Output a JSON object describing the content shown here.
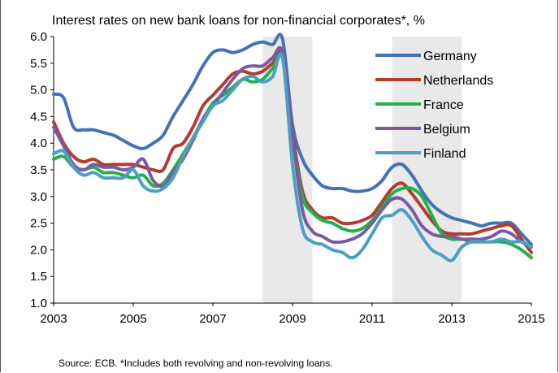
{
  "chart_data": {
    "type": "line",
    "title": "Interest rates on new bank loans for non-financial corporates*, %",
    "source_label": "Source: ECB.",
    "note": "*Includes both revolving and non-revolving loans.",
    "xlim": [
      2003,
      2015
    ],
    "ylim": [
      1.0,
      6.0
    ],
    "x_ticks": [
      2003,
      2005,
      2007,
      2009,
      2011,
      2013,
      2015
    ],
    "y_ticks": [
      "1.0",
      "1.5",
      "2.0",
      "2.5",
      "3.0",
      "3.5",
      "4.0",
      "4.5",
      "5.0",
      "5.5",
      "6.0"
    ],
    "shaded_periods": [
      [
        2008.25,
        2009.5
      ],
      [
        2011.5,
        2013.25
      ]
    ],
    "legend_position": "top-right",
    "x": [
      2003.0,
      2003.25,
      2003.5,
      2003.75,
      2004.0,
      2004.25,
      2004.5,
      2004.75,
      2005.0,
      2005.25,
      2005.5,
      2005.75,
      2006.0,
      2006.25,
      2006.5,
      2006.75,
      2007.0,
      2007.25,
      2007.5,
      2007.75,
      2008.0,
      2008.25,
      2008.5,
      2008.75,
      2009.0,
      2009.25,
      2009.5,
      2009.75,
      2010.0,
      2010.25,
      2010.5,
      2010.75,
      2011.0,
      2011.25,
      2011.5,
      2011.75,
      2012.0,
      2012.25,
      2012.5,
      2012.75,
      2013.0,
      2013.25,
      2013.5,
      2013.75,
      2014.0,
      2014.25,
      2014.5,
      2014.75,
      2015.0
    ],
    "series": [
      {
        "name": "Germany",
        "color": "#4472b8",
        "values": [
          4.92,
          4.85,
          4.3,
          4.25,
          4.25,
          4.2,
          4.15,
          4.05,
          3.95,
          3.9,
          4.0,
          4.15,
          4.5,
          4.8,
          5.1,
          5.45,
          5.7,
          5.75,
          5.7,
          5.75,
          5.85,
          5.9,
          5.85,
          5.95,
          4.35,
          3.7,
          3.4,
          3.2,
          3.15,
          3.15,
          3.1,
          3.1,
          3.15,
          3.3,
          3.55,
          3.6,
          3.4,
          3.1,
          2.85,
          2.7,
          2.6,
          2.55,
          2.5,
          2.45,
          2.5,
          2.5,
          2.5,
          2.3,
          2.1
        ]
      },
      {
        "name": "Netherlands",
        "color": "#b53a30",
        "values": [
          4.4,
          4.0,
          3.75,
          3.65,
          3.7,
          3.6,
          3.6,
          3.6,
          3.6,
          3.55,
          3.5,
          3.5,
          3.9,
          4.0,
          4.3,
          4.7,
          4.9,
          5.1,
          5.3,
          5.35,
          5.3,
          5.35,
          5.5,
          5.65,
          4.2,
          3.1,
          2.75,
          2.6,
          2.6,
          2.5,
          2.5,
          2.55,
          2.65,
          2.9,
          3.15,
          3.25,
          3.05,
          2.8,
          2.55,
          2.35,
          2.3,
          2.3,
          2.3,
          2.35,
          2.4,
          2.45,
          2.45,
          2.2,
          1.95
        ]
      },
      {
        "name": "France",
        "color": "#22b24c",
        "values": [
          3.7,
          3.75,
          3.55,
          3.5,
          3.55,
          3.45,
          3.45,
          3.4,
          3.35,
          3.4,
          3.2,
          3.25,
          3.5,
          3.8,
          4.1,
          4.45,
          4.75,
          4.9,
          5.05,
          5.2,
          5.15,
          5.2,
          5.4,
          5.6,
          4.1,
          3.0,
          2.7,
          2.55,
          2.5,
          2.4,
          2.35,
          2.4,
          2.55,
          2.8,
          3.05,
          3.15,
          3.15,
          3.0,
          2.65,
          2.3,
          2.2,
          2.2,
          2.15,
          2.15,
          2.15,
          2.15,
          2.1,
          2.0,
          1.85
        ]
      },
      {
        "name": "Belgium",
        "color": "#7a5aa3",
        "values": [
          4.3,
          3.95,
          3.6,
          3.5,
          3.6,
          3.55,
          3.55,
          3.5,
          3.55,
          3.7,
          3.3,
          3.2,
          3.45,
          3.7,
          4.05,
          4.45,
          4.7,
          4.95,
          5.2,
          5.4,
          5.45,
          5.45,
          5.6,
          5.7,
          4.15,
          2.75,
          2.35,
          2.25,
          2.15,
          2.15,
          2.2,
          2.3,
          2.5,
          2.75,
          2.95,
          2.95,
          2.75,
          2.45,
          2.3,
          2.25,
          2.25,
          2.2,
          2.2,
          2.2,
          2.25,
          2.35,
          2.3,
          2.15,
          2.05
        ]
      },
      {
        "name": "Finland",
        "color": "#4ba0c4",
        "values": [
          3.8,
          3.85,
          3.55,
          3.4,
          3.45,
          3.35,
          3.35,
          3.35,
          3.5,
          3.2,
          3.1,
          3.15,
          3.35,
          3.75,
          4.1,
          4.4,
          4.7,
          4.8,
          5.0,
          5.2,
          5.25,
          5.15,
          5.25,
          5.6,
          3.6,
          2.4,
          2.15,
          2.1,
          2.0,
          1.95,
          1.85,
          2.0,
          2.3,
          2.6,
          2.65,
          2.75,
          2.55,
          2.25,
          2.0,
          1.9,
          1.8,
          2.05,
          2.15,
          2.15,
          2.15,
          2.2,
          2.15,
          2.15,
          2.05
        ]
      }
    ]
  }
}
